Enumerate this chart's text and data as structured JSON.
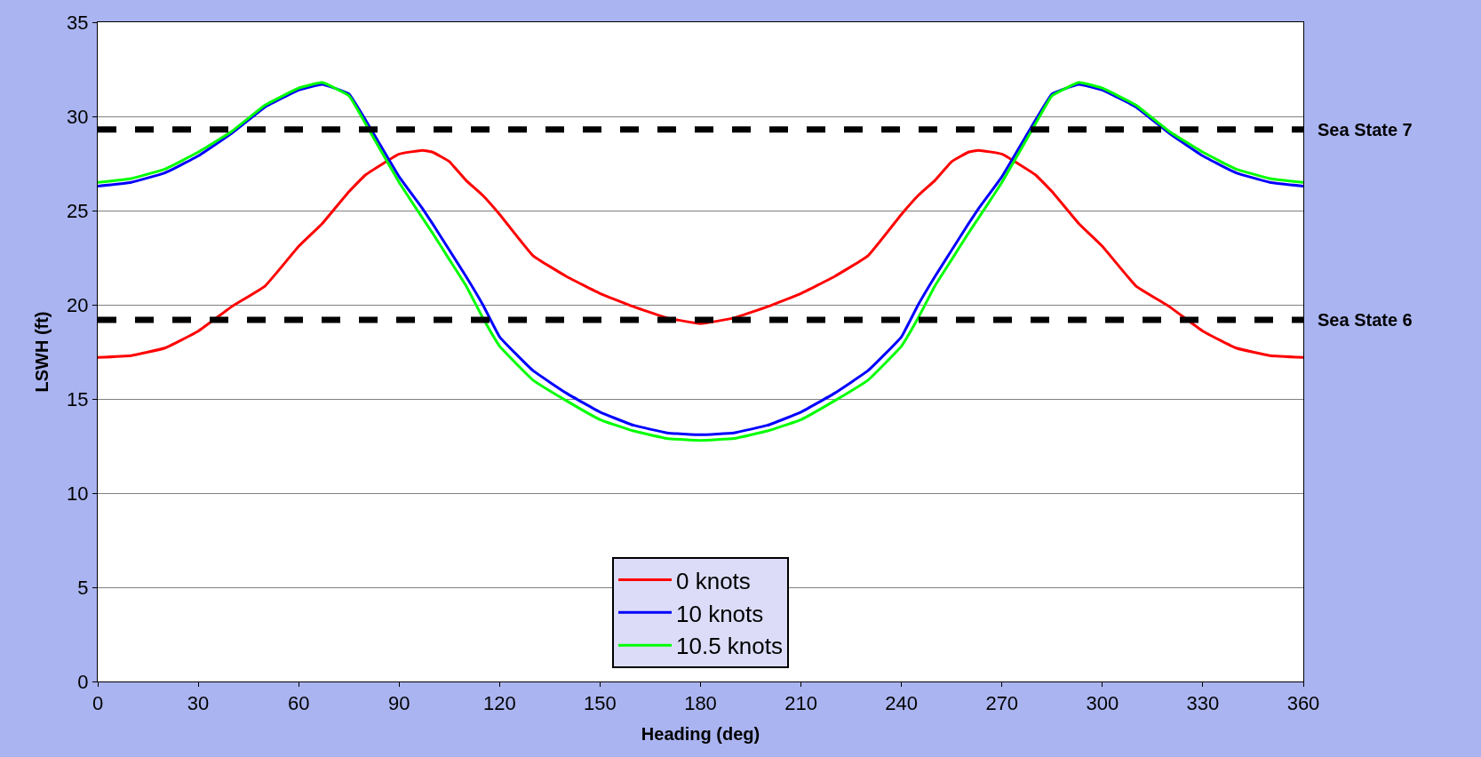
{
  "chart_data": {
    "type": "line",
    "xlabel": "Heading (deg)",
    "ylabel": "LSWH (ft)",
    "x": [
      0,
      10,
      20,
      30,
      40,
      50,
      60,
      67,
      75,
      80,
      90,
      97,
      100,
      105,
      110,
      115,
      120,
      130,
      140,
      150,
      160,
      170,
      180,
      190,
      200,
      210,
      220,
      230,
      240,
      245,
      250,
      255,
      260,
      263,
      270,
      280,
      285,
      293,
      300,
      310,
      320,
      330,
      340,
      350,
      360
    ],
    "series": [
      {
        "name": "0 knots",
        "color": "#ff0000",
        "values": [
          17.2,
          17.3,
          17.7,
          18.6,
          19.9,
          21.0,
          23.1,
          24.3,
          26.0,
          26.9,
          28.0,
          28.2,
          28.1,
          27.6,
          26.6,
          25.8,
          24.8,
          22.6,
          21.5,
          20.6,
          19.9,
          19.3,
          19.0,
          19.3,
          19.9,
          20.6,
          21.5,
          22.6,
          24.8,
          25.8,
          26.6,
          27.6,
          28.1,
          28.2,
          28.0,
          26.9,
          26.0,
          24.3,
          23.1,
          21.0,
          19.9,
          18.6,
          17.7,
          17.3,
          17.2
        ]
      },
      {
        "name": "10 knots",
        "color": "#0000ff",
        "values": [
          26.3,
          26.5,
          27.0,
          27.9,
          29.1,
          30.5,
          31.4,
          31.7,
          31.2,
          29.8,
          26.8,
          25.1,
          24.3,
          22.9,
          21.5,
          20.0,
          18.3,
          16.5,
          15.3,
          14.3,
          13.6,
          13.2,
          13.1,
          13.2,
          13.6,
          14.3,
          15.3,
          16.5,
          18.3,
          20.0,
          21.5,
          22.9,
          24.3,
          25.1,
          26.8,
          29.8,
          31.2,
          31.7,
          31.4,
          30.5,
          29.1,
          27.9,
          27.0,
          26.5,
          26.3
        ]
      },
      {
        "name": "10.5 knots",
        "color": "#00ff00",
        "values": [
          26.5,
          26.7,
          27.2,
          28.1,
          29.2,
          30.6,
          31.5,
          31.8,
          31.1,
          29.6,
          26.5,
          24.6,
          23.8,
          22.4,
          21.0,
          19.3,
          17.8,
          16.0,
          14.9,
          13.9,
          13.3,
          12.9,
          12.8,
          12.9,
          13.3,
          13.9,
          14.9,
          16.0,
          17.8,
          19.3,
          21.0,
          22.4,
          23.8,
          24.6,
          26.5,
          29.6,
          31.1,
          31.8,
          31.5,
          30.6,
          29.2,
          28.1,
          27.2,
          26.7,
          26.5
        ]
      }
    ],
    "xlim": [
      0,
      360
    ],
    "xticks": [
      0,
      30,
      60,
      90,
      120,
      150,
      180,
      210,
      240,
      270,
      300,
      330,
      360
    ],
    "ylim": [
      0,
      35
    ],
    "yticks": [
      0,
      5,
      10,
      15,
      20,
      25,
      30,
      35
    ],
    "ref_lines": [
      {
        "axis": "y",
        "value": 29.3,
        "label": "Sea State 7",
        "color": "#000000",
        "line_style": "dashed"
      },
      {
        "axis": "y",
        "value": 19.2,
        "label": "Sea State 6",
        "color": "#000000",
        "line_style": "dashed"
      }
    ],
    "grid": "y",
    "legend": "bottom",
    "marker": "none",
    "line_style": "solid"
  }
}
